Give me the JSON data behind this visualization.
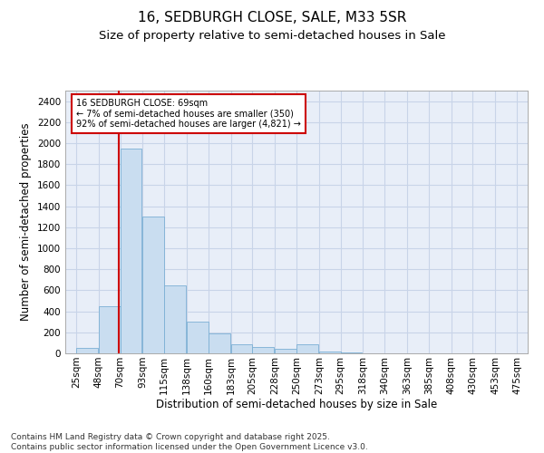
{
  "title": "16, SEDBURGH CLOSE, SALE, M33 5SR",
  "subtitle": "Size of property relative to semi-detached houses in Sale",
  "xlabel": "Distribution of semi-detached houses by size in Sale",
  "ylabel": "Number of semi-detached properties",
  "footnote1": "Contains HM Land Registry data © Crown copyright and database right 2025.",
  "footnote2": "Contains public sector information licensed under the Open Government Licence v3.0.",
  "annotation_title": "16 SEDBURGH CLOSE: 69sqm",
  "annotation_line1": "← 7% of semi-detached houses are smaller (350)",
  "annotation_line2": "92% of semi-detached houses are larger (4,821) →",
  "property_size": 69,
  "bar_centers": [
    36,
    59,
    81,
    104,
    126,
    149,
    171,
    194,
    216,
    239,
    261,
    284,
    306,
    329,
    351,
    374,
    396,
    419,
    441,
    464
  ],
  "bar_widths": [
    22,
    22,
    22,
    22,
    22,
    22,
    22,
    22,
    22,
    22,
    22,
    22,
    22,
    22,
    22,
    22,
    22,
    22,
    22,
    22
  ],
  "bar_heights": [
    50,
    450,
    1950,
    1300,
    650,
    300,
    190,
    90,
    60,
    40,
    90,
    15,
    5,
    2,
    2,
    2,
    2,
    2,
    2,
    2
  ],
  "tick_positions": [
    25,
    48,
    70,
    93,
    115,
    138,
    160,
    183,
    205,
    228,
    250,
    273,
    295,
    318,
    340,
    363,
    385,
    408,
    430,
    453,
    475
  ],
  "tick_labels": [
    "25sqm",
    "48sqm",
    "70sqm",
    "93sqm",
    "115sqm",
    "138sqm",
    "160sqm",
    "183sqm",
    "205sqm",
    "228sqm",
    "250sqm",
    "273sqm",
    "295sqm",
    "318sqm",
    "340sqm",
    "363sqm",
    "385sqm",
    "408sqm",
    "430sqm",
    "453sqm",
    "475sqm"
  ],
  "ylim": [
    0,
    2500
  ],
  "yticks": [
    0,
    200,
    400,
    600,
    800,
    1000,
    1200,
    1400,
    1600,
    1800,
    2000,
    2200,
    2400
  ],
  "bar_color": "#c9ddf0",
  "bar_edge_color": "#7bafd4",
  "grid_color": "#c8d4e8",
  "bg_color": "#e8eef8",
  "vline_color": "#cc0000",
  "annotation_box_color": "#cc0000",
  "title_fontsize": 11,
  "subtitle_fontsize": 9.5,
  "label_fontsize": 8.5,
  "tick_fontsize": 7.5,
  "footnote_fontsize": 6.5
}
